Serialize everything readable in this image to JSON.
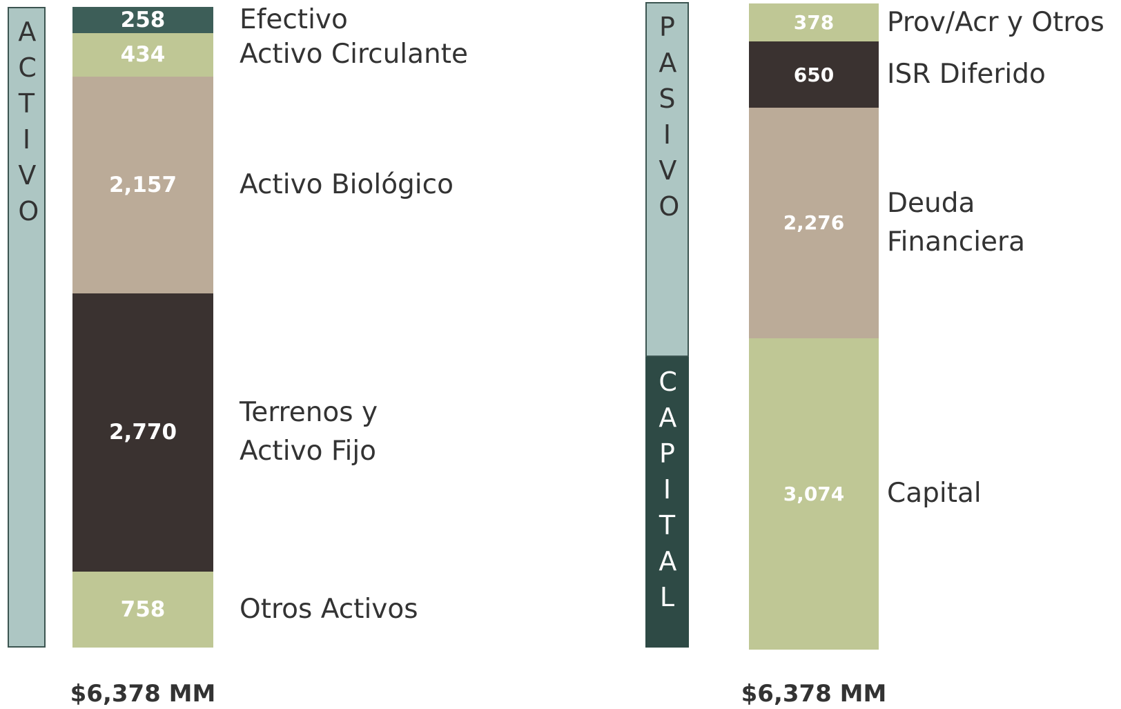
{
  "chart_data": [
    {
      "type": "stacked_bar",
      "side_labels": [
        "ACTIVO"
      ],
      "series": [
        {
          "name": "Efectivo",
          "color": "#3d5e58",
          "values": [
            258
          ],
          "value_labels": [
            "258"
          ]
        },
        {
          "name": "Activo Circulante",
          "color": "#bfc795",
          "values": [
            434
          ],
          "value_labels": [
            "434"
          ]
        },
        {
          "name": "Activo Biológico",
          "color": "#bbab98",
          "values": [
            2157
          ],
          "value_labels": [
            "2,157"
          ]
        },
        {
          "name": "Terrenos y\nActivo Fijo",
          "color": "#3a3230",
          "values": [
            2770
          ],
          "value_labels": [
            "2,770"
          ]
        },
        {
          "name": "Otros Activos",
          "color": "#bfc795",
          "values": [
            758
          ],
          "value_labels": [
            "758"
          ]
        }
      ],
      "total_label": "$6,378 MM"
    },
    {
      "type": "stacked_bar",
      "side_labels": [
        "PASIVO",
        "CAPITAL"
      ],
      "series": [
        {
          "name": "Prov/Acr y Otros",
          "color": "#bfc795",
          "values": [
            378
          ],
          "value_labels": [
            "378"
          ]
        },
        {
          "name": "ISR Diferido",
          "color": "#3a3230",
          "values": [
            650
          ],
          "value_labels": [
            "650"
          ]
        },
        {
          "name": "Deuda Financiera",
          "color": "#bbab98",
          "values": [
            2276
          ],
          "value_labels": [
            "2,276"
          ]
        },
        {
          "name": "Capital",
          "color": "#bfc795",
          "values": [
            3074
          ],
          "value_labels": [
            "3,074"
          ]
        }
      ],
      "total_label": "$6,378 MM"
    }
  ]
}
